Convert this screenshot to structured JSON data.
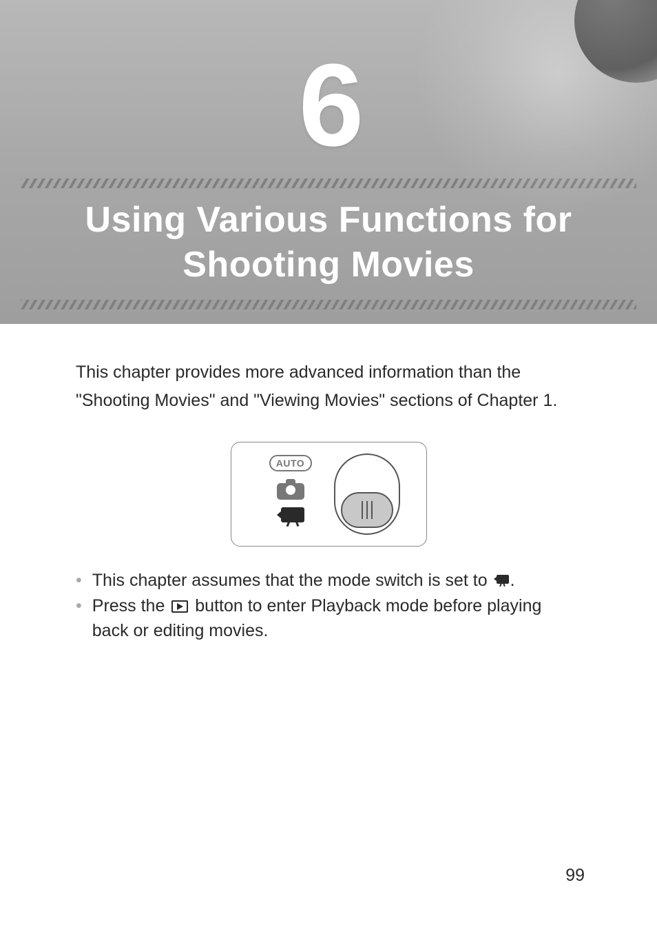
{
  "chapter": {
    "number": "6",
    "title": "Using Various Functions for Shooting Movies"
  },
  "intro": "This chapter provides more advanced information than the \"Shooting Movies\" and \"Viewing Movies\" sections of Chapter 1.",
  "diagram": {
    "auto_label": "AUTO",
    "border_color": "#888888",
    "knob_color": "#c8c8c8"
  },
  "bullets": [
    {
      "pre": "This chapter assumes that the mode switch is set to ",
      "icon": "movie",
      "post": "."
    },
    {
      "pre": "Press the ",
      "icon": "play",
      "post": " button to enter Playback mode before playing back or editing movies."
    }
  ],
  "page_number": "99",
  "colors": {
    "header_gradient_top": "#b8b8b8",
    "header_gradient_bottom": "#9e9e9e",
    "title_color": "#ffffff",
    "body_text": "#2a2a2a",
    "bullet_gray": "#a8a8a8"
  }
}
